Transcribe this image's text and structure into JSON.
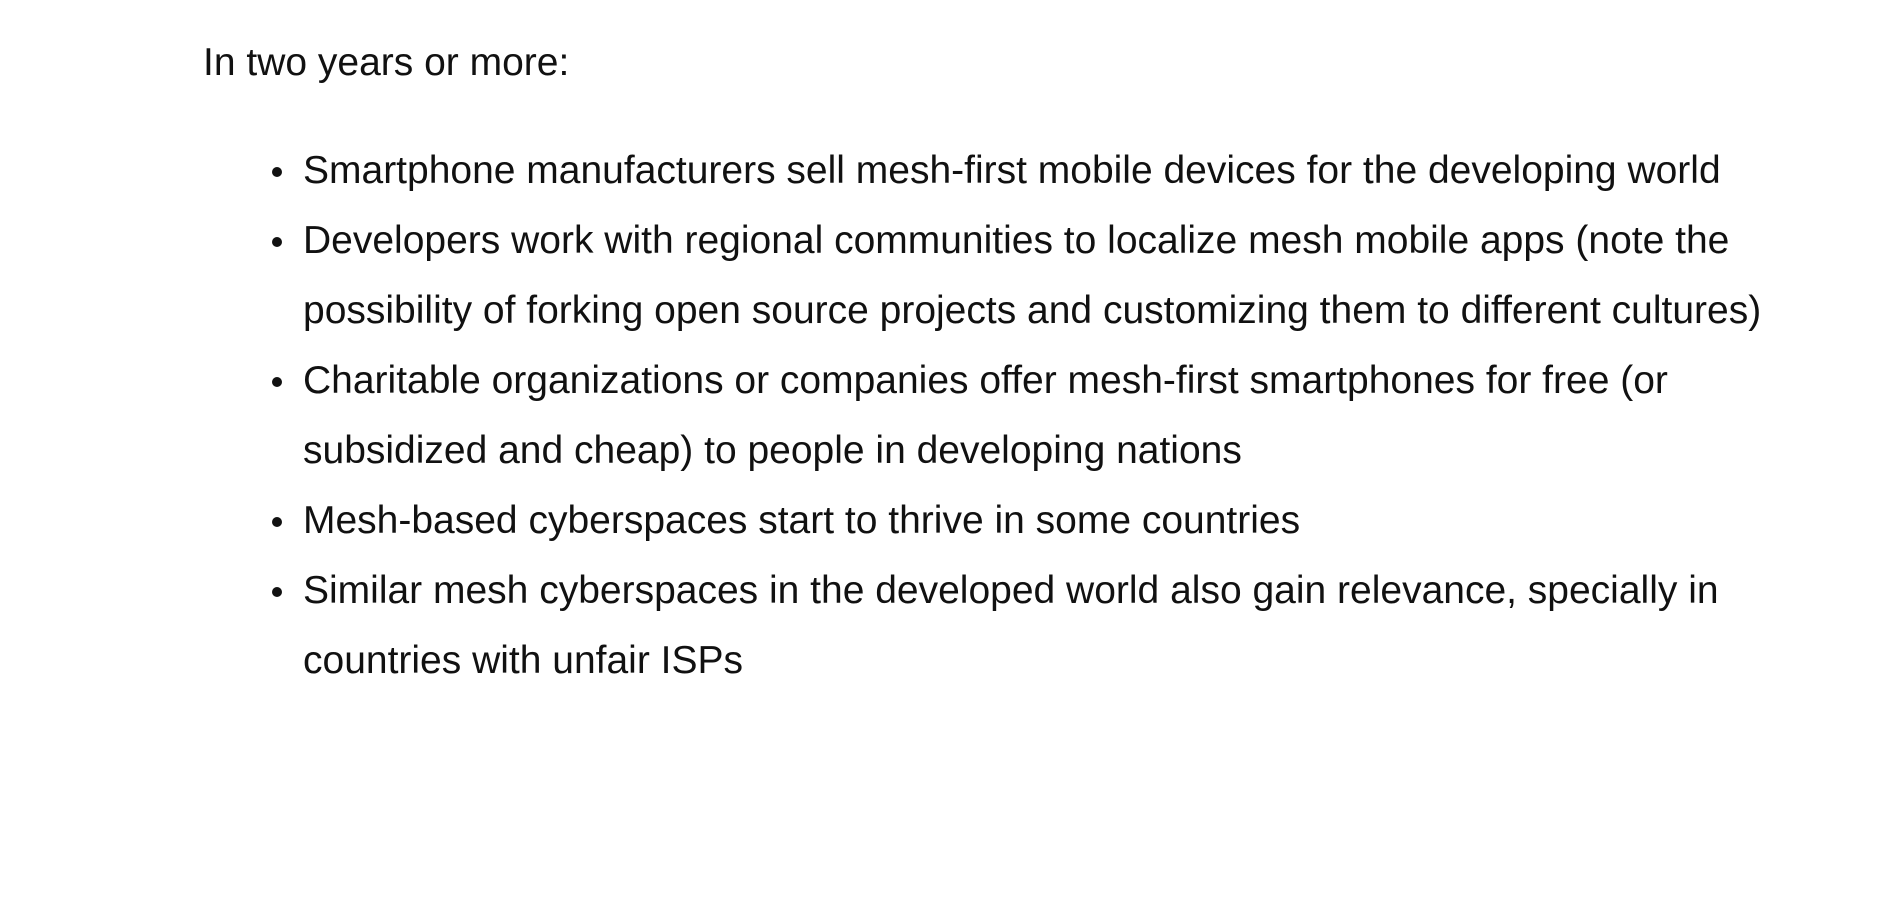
{
  "document": {
    "intro": "In two years or more:",
    "items": [
      {
        "text": "Smartphone manufacturers sell mesh-first mobile devices for the developing world"
      },
      {
        "text": "Developers work with regional communities to localize mesh mobile apps (note the possibility of forking open source projects and customizing them to different cultures)"
      },
      {
        "text": "Charitable organizations or companies offer mesh-first smartphones for free (or subsidized and cheap) to people in developing nations"
      },
      {
        "text": "Mesh-based cyberspaces start to thrive in some countries"
      },
      {
        "text": "Similar mesh cyberspaces in the developed world also gain relevance, specially in countries with unfair ISPs"
      }
    ]
  }
}
